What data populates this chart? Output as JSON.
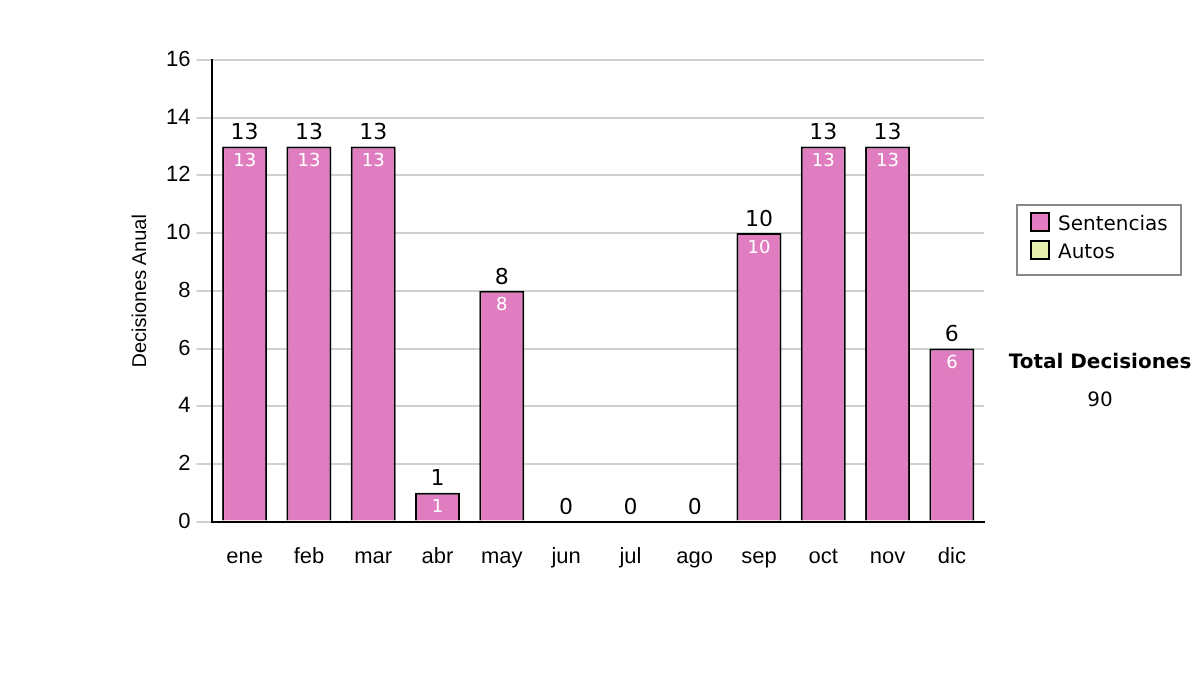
{
  "chart_data": {
    "type": "bar",
    "stacked": true,
    "ylabel": "Decisiones Anual",
    "categories": [
      "ene",
      "feb",
      "mar",
      "abr",
      "may",
      "jun",
      "jul",
      "ago",
      "sep",
      "oct",
      "nov",
      "dic"
    ],
    "series": [
      {
        "name": "Sentencias",
        "color": "#e07cc0",
        "values": [
          13,
          13,
          13,
          1,
          8,
          0,
          0,
          0,
          10,
          13,
          13,
          6
        ],
        "value_labels": [
          "13",
          "13",
          "13",
          "1",
          "8",
          null,
          null,
          null,
          "10",
          "13",
          "13",
          "6"
        ]
      },
      {
        "name": "Autos",
        "color": "#e8f0b0",
        "values": [
          0,
          0,
          0,
          0,
          0,
          0,
          0,
          0,
          0,
          0,
          0,
          0
        ]
      }
    ],
    "totals": [
      "13",
      "13",
      "13",
      "1",
      "8",
      "0",
      "0",
      "0",
      "10",
      "13",
      "13",
      "6"
    ],
    "ylim": [
      0,
      16
    ],
    "yticks": [
      0,
      2,
      4,
      6,
      8,
      10,
      12,
      14,
      16
    ],
    "grid": "y",
    "legend": "right",
    "annotations": [
      "Total Decisiones",
      "90"
    ]
  }
}
